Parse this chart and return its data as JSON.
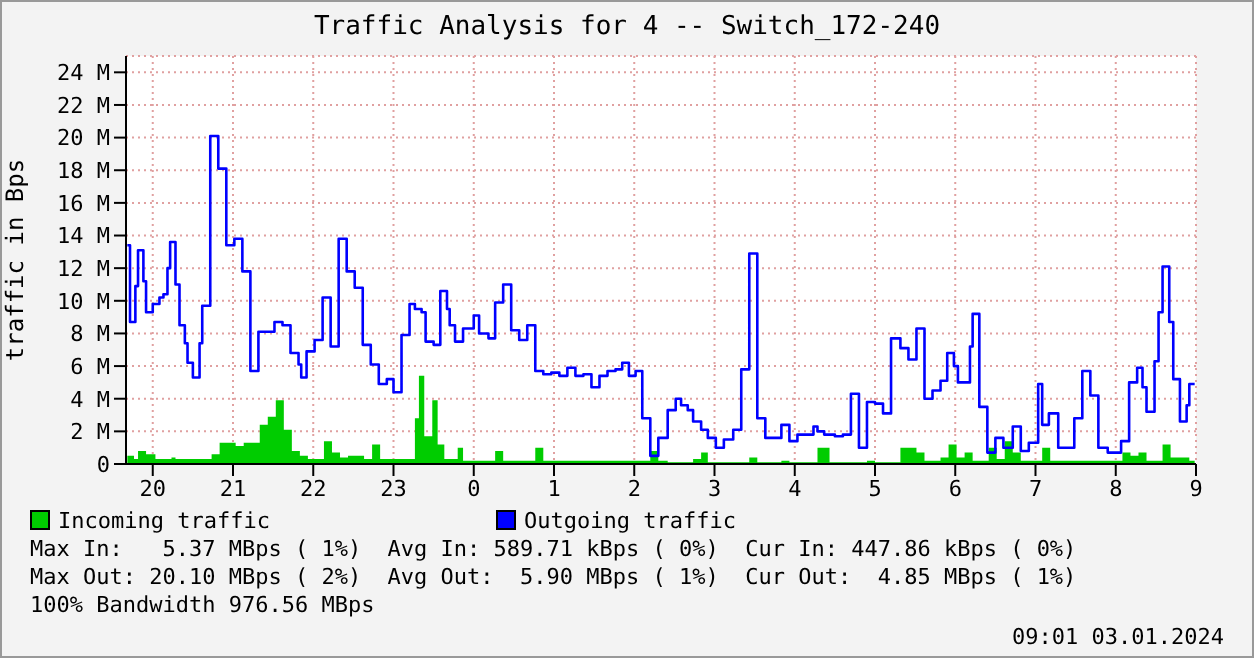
{
  "chart_data": {
    "type": "step",
    "title": "Traffic Analysis for 4 -- Switch_172-240",
    "ylabel": "traffic in Bps",
    "xlim": [
      "2024-01-02T19:40",
      "2024-01-03T09:00"
    ],
    "xticks": [
      {
        "value": "2024-01-02T20:00",
        "label": "20"
      },
      {
        "value": "2024-01-02T21:00",
        "label": "21"
      },
      {
        "value": "2024-01-02T22:00",
        "label": "22"
      },
      {
        "value": "2024-01-02T23:00",
        "label": "23"
      },
      {
        "value": "2024-01-03T00:00",
        "label": "0"
      },
      {
        "value": "2024-01-03T01:00",
        "label": "1"
      },
      {
        "value": "2024-01-03T02:00",
        "label": "2"
      },
      {
        "value": "2024-01-03T03:00",
        "label": "3"
      },
      {
        "value": "2024-01-03T04:00",
        "label": "4"
      },
      {
        "value": "2024-01-03T05:00",
        "label": "5"
      },
      {
        "value": "2024-01-03T06:00",
        "label": "6"
      },
      {
        "value": "2024-01-03T07:00",
        "label": "7"
      },
      {
        "value": "2024-01-03T08:00",
        "label": "8"
      },
      {
        "value": "2024-01-03T09:00",
        "label": "9"
      }
    ],
    "ylim": [
      0,
      25
    ],
    "yticks": [
      0,
      {
        "value": 2,
        "label": "2 M"
      },
      {
        "value": 4,
        "label": "4 M"
      },
      {
        "value": 6,
        "label": "6 M"
      },
      {
        "value": 8,
        "label": "8 M"
      },
      {
        "value": 10,
        "label": "10 M"
      },
      {
        "value": 12,
        "label": "12 M"
      },
      {
        "value": 14,
        "label": "14 M"
      },
      {
        "value": 16,
        "label": "16 M"
      },
      {
        "value": 18,
        "label": "18 M"
      },
      {
        "value": 20,
        "label": "20 M"
      },
      {
        "value": 22,
        "label": "22 M"
      },
      {
        "value": 24,
        "label": "24 M"
      }
    ],
    "grid": true,
    "legend": "bottom",
    "series": [
      {
        "name": "Incoming traffic",
        "type": "area",
        "color": "#00cc00",
        "x": [
          "2024-01-02T19:41",
          "2024-01-02T19:46",
          "2024-01-02T19:49",
          "2024-01-02T19:55",
          "2024-01-02T20:02",
          "2024-01-02T20:14",
          "2024-01-02T20:17",
          "2024-01-02T20:44",
          "2024-01-02T20:50",
          "2024-01-02T21:02",
          "2024-01-02T21:08",
          "2024-01-02T21:20",
          "2024-01-02T21:26",
          "2024-01-02T21:32",
          "2024-01-02T21:38",
          "2024-01-02T21:44",
          "2024-01-02T21:50",
          "2024-01-02T21:56",
          "2024-01-02T22:08",
          "2024-01-02T22:14",
          "2024-01-02T22:20",
          "2024-01-02T22:26",
          "2024-01-02T22:38",
          "2024-01-02T22:44",
          "2024-01-02T22:50",
          "2024-01-02T23:16",
          "2024-01-02T23:19",
          "2024-01-02T23:23",
          "2024-01-02T23:29",
          "2024-01-02T23:33",
          "2024-01-02T23:38",
          "2024-01-02T23:48",
          "2024-01-02T23:52",
          "2024-01-03T00:16",
          "2024-01-03T00:22",
          "2024-01-03T00:46",
          "2024-01-03T00:52",
          "2024-01-03T02:12",
          "2024-01-03T02:18",
          "2024-01-03T02:25",
          "2024-01-03T02:44",
          "2024-01-03T02:50",
          "2024-01-03T02:55",
          "2024-01-03T03:26",
          "2024-01-03T03:32",
          "2024-01-03T03:50",
          "2024-01-03T03:56",
          "2024-01-03T04:17",
          "2024-01-03T04:26",
          "2024-01-03T04:54",
          "2024-01-03T05:00",
          "2024-01-03T05:19",
          "2024-01-03T05:31",
          "2024-01-03T05:37",
          "2024-01-03T05:49",
          "2024-01-03T05:55",
          "2024-01-03T06:01",
          "2024-01-03T06:07",
          "2024-01-03T06:13",
          "2024-01-03T06:25",
          "2024-01-03T06:31",
          "2024-01-03T06:37",
          "2024-01-03T06:43",
          "2024-01-03T06:49",
          "2024-01-03T07:05",
          "2024-01-03T07:11",
          "2024-01-03T07:34",
          "2024-01-03T08:05",
          "2024-01-03T08:11",
          "2024-01-03T08:17",
          "2024-01-03T08:23",
          "2024-01-03T08:35",
          "2024-01-03T08:41",
          "2024-01-03T08:55",
          "2024-01-03T08:59"
        ],
        "values": [
          0.5,
          0.3,
          0.8,
          0.6,
          0.3,
          0.4,
          0.3,
          0.6,
          1.3,
          1.1,
          1.3,
          2.4,
          2.9,
          3.9,
          2.1,
          0.8,
          0.5,
          0.3,
          1.4,
          0.7,
          0.4,
          0.5,
          0.3,
          1.2,
          0.3,
          2.8,
          5.4,
          1.7,
          3.9,
          1.2,
          0.3,
          1.0,
          0.2,
          0.8,
          0.2,
          1.0,
          0.2,
          0.8,
          0.2,
          0.1,
          0.3,
          0.7,
          0.1,
          0.4,
          0.1,
          0.2,
          0.1,
          1.0,
          0.1,
          0.2,
          0.1,
          1.0,
          0.7,
          0.2,
          0.4,
          1.2,
          0.4,
          0.7,
          0.2,
          1.0,
          0.3,
          1.4,
          0.7,
          0.2,
          1.0,
          0.2,
          0.2,
          0.7,
          0.5,
          0.7,
          0.2,
          1.2,
          0.4,
          0.2,
          0.2
        ]
      },
      {
        "name": "Outgoing traffic",
        "color": "#0000ff",
        "x": [
          "2024-01-02T19:41",
          "2024-01-02T19:43",
          "2024-01-02T19:47",
          "2024-01-02T19:49",
          "2024-01-02T19:53",
          "2024-01-02T19:55",
          "2024-01-02T20:00",
          "2024-01-02T20:05",
          "2024-01-02T20:08",
          "2024-01-02T20:11",
          "2024-01-02T20:13",
          "2024-01-02T20:17",
          "2024-01-02T20:20",
          "2024-01-02T20:24",
          "2024-01-02T20:26",
          "2024-01-02T20:30",
          "2024-01-02T20:35",
          "2024-01-02T20:37",
          "2024-01-02T20:43",
          "2024-01-02T20:49",
          "2024-01-02T20:55",
          "2024-01-02T21:01",
          "2024-01-02T21:07",
          "2024-01-02T21:13",
          "2024-01-02T21:19",
          "2024-01-02T21:31",
          "2024-01-02T21:37",
          "2024-01-02T21:43",
          "2024-01-02T21:49",
          "2024-01-02T21:51",
          "2024-01-02T21:55",
          "2024-01-02T22:01",
          "2024-01-02T22:07",
          "2024-01-02T22:13",
          "2024-01-02T22:19",
          "2024-01-02T22:25",
          "2024-01-02T22:31",
          "2024-01-02T22:37",
          "2024-01-02T22:43",
          "2024-01-02T22:49",
          "2024-01-02T22:55",
          "2024-01-02T23:00",
          "2024-01-02T23:06",
          "2024-01-02T23:12",
          "2024-01-02T23:16",
          "2024-01-02T23:21",
          "2024-01-02T23:24",
          "2024-01-02T23:30",
          "2024-01-02T23:35",
          "2024-01-02T23:40",
          "2024-01-02T23:42",
          "2024-01-02T23:46",
          "2024-01-02T23:52",
          "2024-01-03T00:00",
          "2024-01-03T00:04",
          "2024-01-03T00:11",
          "2024-01-03T00:16",
          "2024-01-03T00:22",
          "2024-01-03T00:28",
          "2024-01-03T00:34",
          "2024-01-03T00:40",
          "2024-01-03T00:46",
          "2024-01-03T00:52",
          "2024-01-03T00:58",
          "2024-01-03T01:04",
          "2024-01-03T01:10",
          "2024-01-03T01:16",
          "2024-01-03T01:22",
          "2024-01-03T01:28",
          "2024-01-03T01:34",
          "2024-01-03T01:40",
          "2024-01-03T01:46",
          "2024-01-03T01:51",
          "2024-01-03T01:56",
          "2024-01-03T02:01",
          "2024-01-03T02:06",
          "2024-01-03T02:12",
          "2024-01-03T02:18",
          "2024-01-03T02:25",
          "2024-01-03T02:31",
          "2024-01-03T02:35",
          "2024-01-03T02:40",
          "2024-01-03T02:44",
          "2024-01-03T02:50",
          "2024-01-03T02:55",
          "2024-01-03T03:01",
          "2024-01-03T03:07",
          "2024-01-03T03:14",
          "2024-01-03T03:20",
          "2024-01-03T03:26",
          "2024-01-03T03:32",
          "2024-01-03T03:38",
          "2024-01-03T03:50",
          "2024-01-03T03:56",
          "2024-01-03T04:02",
          "2024-01-03T04:14",
          "2024-01-03T04:17",
          "2024-01-03T04:22",
          "2024-01-03T04:30",
          "2024-01-03T04:36",
          "2024-01-03T04:42",
          "2024-01-03T04:48",
          "2024-01-03T04:54",
          "2024-01-03T05:00",
          "2024-01-03T05:06",
          "2024-01-03T05:12",
          "2024-01-03T05:19",
          "2024-01-03T05:25",
          "2024-01-03T05:31",
          "2024-01-03T05:37",
          "2024-01-03T05:43",
          "2024-01-03T05:49",
          "2024-01-03T05:54",
          "2024-01-03T05:59",
          "2024-01-03T06:02",
          "2024-01-03T06:11",
          "2024-01-03T06:13",
          "2024-01-03T06:18",
          "2024-01-03T06:24",
          "2024-01-03T06:30",
          "2024-01-03T06:36",
          "2024-01-03T06:43",
          "2024-01-03T06:49",
          "2024-01-03T06:55",
          "2024-01-03T07:02",
          "2024-01-03T07:05",
          "2024-01-03T07:10",
          "2024-01-03T07:17",
          "2024-01-03T07:29",
          "2024-01-03T07:35",
          "2024-01-03T07:41",
          "2024-01-03T07:47",
          "2024-01-03T07:54",
          "2024-01-03T08:04",
          "2024-01-03T08:10",
          "2024-01-03T08:16",
          "2024-01-03T08:20",
          "2024-01-03T08:23",
          "2024-01-03T08:29",
          "2024-01-03T08:32",
          "2024-01-03T08:35",
          "2024-01-03T08:40",
          "2024-01-03T08:43",
          "2024-01-03T08:48",
          "2024-01-03T08:53",
          "2024-01-03T08:55",
          "2024-01-03T08:59"
        ],
        "values": [
          13.4,
          8.7,
          10.9,
          13.1,
          11.2,
          9.3,
          9.8,
          10.2,
          10.4,
          12.0,
          13.6,
          11.0,
          8.5,
          7.4,
          6.2,
          5.3,
          7.4,
          9.7,
          20.1,
          18.1,
          13.4,
          13.8,
          11.8,
          5.7,
          8.1,
          8.7,
          8.5,
          6.8,
          6.1,
          5.3,
          6.9,
          7.6,
          10.2,
          7.2,
          13.8,
          11.8,
          10.8,
          7.3,
          6.1,
          4.9,
          5.2,
          4.4,
          7.9,
          9.8,
          9.5,
          9.3,
          7.5,
          7.3,
          10.6,
          9.5,
          8.5,
          7.5,
          8.3,
          9.1,
          8.0,
          7.7,
          9.9,
          11.0,
          8.2,
          7.6,
          8.5,
          5.7,
          5.5,
          5.6,
          5.4,
          5.9,
          5.4,
          5.5,
          4.7,
          5.4,
          5.7,
          5.8,
          6.2,
          5.4,
          5.7,
          2.8,
          0.5,
          1.6,
          3.3,
          4.0,
          3.6,
          3.3,
          2.6,
          2.1,
          1.6,
          1.0,
          1.5,
          2.1,
          5.8,
          12.9,
          2.8,
          1.6,
          2.4,
          1.4,
          1.8,
          2.3,
          2.0,
          1.8,
          1.7,
          1.8,
          4.3,
          1.0,
          3.8,
          3.7,
          3.1,
          7.7,
          7.1,
          6.4,
          8.3,
          4.0,
          4.5,
          5.1,
          6.8,
          6.0,
          5.0,
          7.2,
          9.2,
          3.5,
          0.7,
          1.6,
          1.0,
          2.3,
          0.8,
          1.3,
          4.9,
          2.4,
          3.1,
          1.0,
          2.8,
          5.7,
          4.2,
          1.0,
          0.7,
          1.4,
          5.0,
          5.9,
          4.7,
          3.2,
          6.3,
          9.3,
          12.1,
          8.7,
          5.2,
          2.6,
          3.6,
          4.9,
          4.9
        ]
      }
    ],
    "annotations": [
      "Max In:   5.37 MBps ( 1%)  Avg In: 589.71 kBps ( 0%)  Cur In: 447.86 kBps ( 0%)",
      "Max Out: 20.10 MBps ( 2%)  Avg Out:  5.90 MBps ( 1%)  Cur Out:  4.85 MBps ( 1%)",
      "100% Bandwidth 976.56 MBps",
      "09:01 03.01.2024"
    ]
  }
}
